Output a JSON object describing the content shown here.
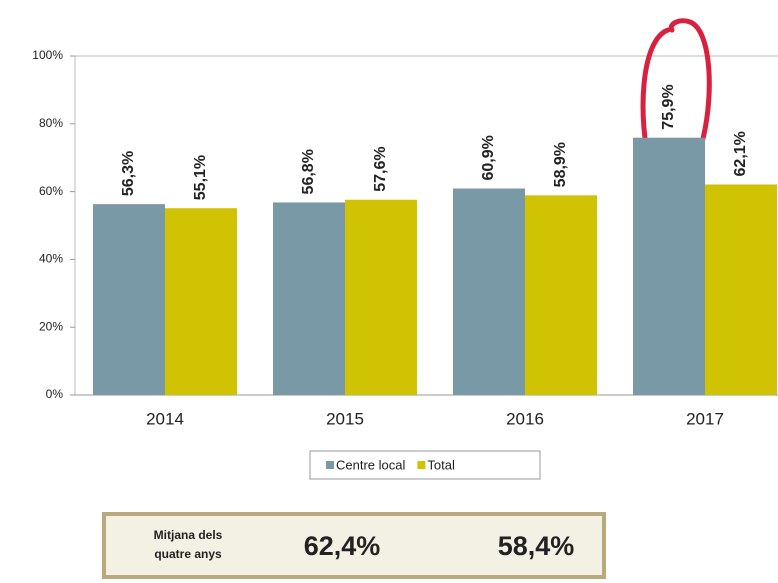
{
  "chart_data": {
    "type": "bar",
    "categories": [
      "2014",
      "2015",
      "2016",
      "2017"
    ],
    "series": [
      {
        "name": "Centre local",
        "color": "#7899a5",
        "values": [
          56.3,
          56.8,
          60.9,
          75.9
        ],
        "value_labels": [
          "56,3%",
          "56,8%",
          "60,9%",
          "75,9%"
        ]
      },
      {
        "name": "Total",
        "color": "#d0c304",
        "values": [
          55.1,
          57.6,
          58.9,
          62.1
        ],
        "value_labels": [
          "55,1%",
          "57,6%",
          "58,9%",
          "62,1%"
        ]
      }
    ],
    "ylim": [
      0,
      100
    ],
    "yticks": [
      {
        "value": 0,
        "label": "0%"
      },
      {
        "value": 20,
        "label": "20%"
      },
      {
        "value": 40,
        "label": "40%"
      },
      {
        "value": 60,
        "label": "60%"
      },
      {
        "value": 80,
        "label": "80%"
      },
      {
        "value": 100,
        "label": "100%"
      }
    ],
    "grid": false,
    "legend": "bottom"
  },
  "summary": {
    "label_lines": [
      "Mitjana dels",
      "quatre anys"
    ],
    "values": [
      62.4,
      58.4
    ],
    "value_labels": [
      "62,4%",
      "58,4%"
    ]
  }
}
